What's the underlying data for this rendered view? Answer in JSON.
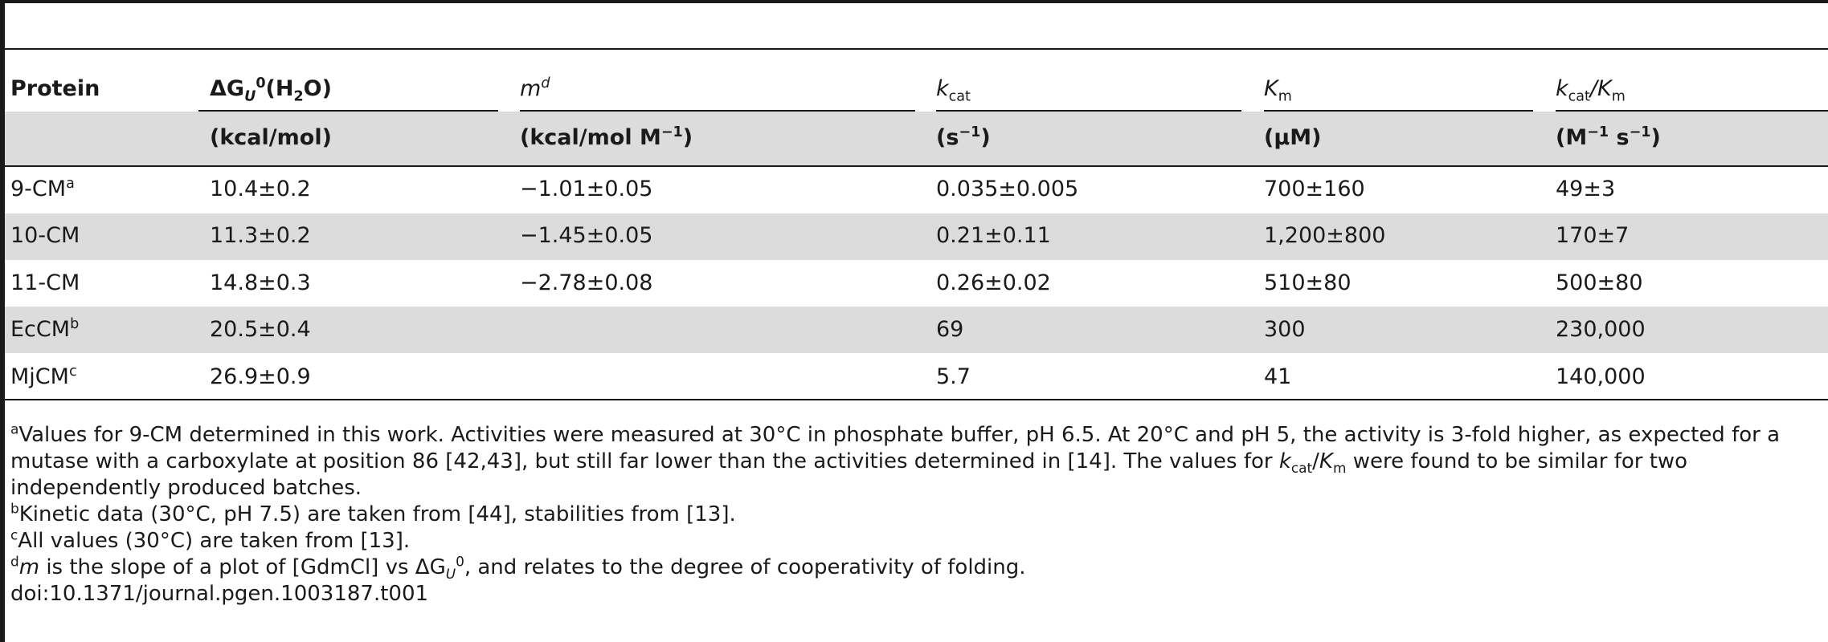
{
  "table": {
    "header": [
      [
        "Protein"
      ],
      [
        "ΔG",
        "U",
        "0",
        "(H",
        "2",
        "O)"
      ],
      [
        "m",
        "d"
      ],
      [
        "k",
        "cat"
      ],
      [
        "K",
        "m"
      ],
      [
        "k",
        "cat",
        "/",
        "K",
        "m"
      ]
    ],
    "units": [
      [
        "(kcal/mol)"
      ],
      [
        "(kcal/mol M",
        "−1",
        ")"
      ],
      [
        "(s",
        "−1",
        ")"
      ],
      [
        "(μM)"
      ],
      [
        "(M",
        "−1",
        " s",
        "−1",
        ")"
      ]
    ],
    "rows": [
      [
        [
          "9-CM",
          "a"
        ],
        "10.4±0.2",
        "−1.01±0.05",
        "0.035±0.005",
        "700±160",
        "49±3"
      ],
      [
        [
          "10-CM"
        ],
        "11.3±0.2",
        "−1.45±0.05",
        "0.21±0.11",
        "1,200±800",
        "170±7"
      ],
      [
        [
          "11-CM"
        ],
        "14.8±0.3",
        "−2.78±0.08",
        "0.26±0.02",
        "510±80",
        "500±80"
      ],
      [
        [
          "EcCM",
          "b"
        ],
        "20.5±0.4",
        null,
        "69",
        "300",
        "230,000"
      ],
      [
        [
          "MjCM",
          "c"
        ],
        "26.9±0.9",
        null,
        "5.7",
        "41",
        "140,000"
      ]
    ],
    "footnotes": [
      [
        "a",
        "Values for 9-CM determined in this work. Activities were measured at 30°C in phosphate buffer, pH 6.5. At 20°C and pH 5, the activity is 3-fold higher, as expected for a mutase with a carboxylate at position 86 [42,43], but still far lower than the activities determined in [14]. The values for ",
        "k",
        "cat",
        "/",
        "K",
        "m",
        " were found to be similar for two independently produced batches."
      ],
      [
        "b",
        "Kinetic data (30°C, pH 7.5) are taken from [44], stabilities from [13]."
      ],
      [
        "c",
        "All values (30°C) are taken from [13]."
      ],
      [
        "d",
        "m",
        " is the slope of a plot of [GdmCl] vs ΔG",
        "U",
        "0",
        ", and relates to the degree of cooperativity of folding."
      ]
    ],
    "doi": "doi:10.1371/journal.pgen.1003187.t001"
  }
}
